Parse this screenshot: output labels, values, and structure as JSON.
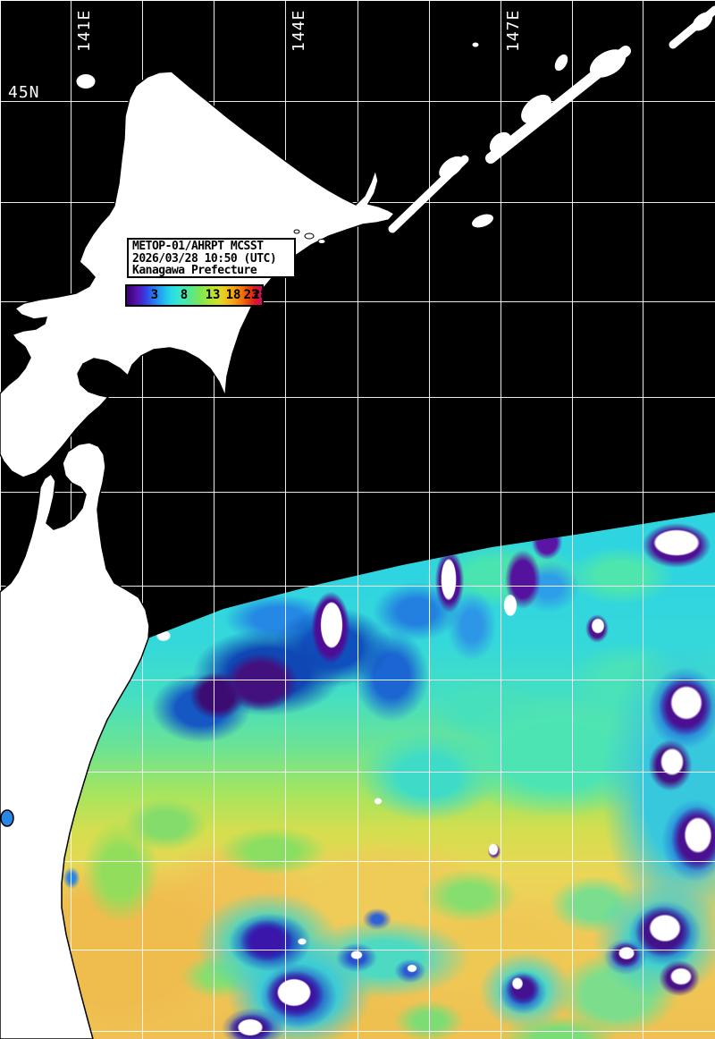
{
  "title_box": {
    "line1": "METOP-01/AHRPT MCSST",
    "line2": "2026/03/28 10:50 (UTC)",
    "line3": "Kanagawa Prefecture"
  },
  "colorbar": {
    "ticks": [
      "3",
      "8",
      "13",
      "18",
      "23",
      "28"
    ]
  },
  "coordinates": {
    "lat_labels": [
      {
        "text": "45N"
      }
    ],
    "lon_labels": [
      {
        "text": "141E"
      },
      {
        "text": "144E"
      },
      {
        "text": "147E"
      }
    ]
  },
  "colors": {
    "sea_no_data": "#000000",
    "land": "#ffffff",
    "grid_line": "#ffffff",
    "scale_cold_to_warm": [
      "#38006E",
      "#3838E0",
      "#2878F0",
      "#20B4F0",
      "#28DCE4",
      "#3CE8C4",
      "#55E88E",
      "#7CE658",
      "#AAE635",
      "#D6DE28",
      "#F0C01E",
      "#F49C14",
      "#E83A10",
      "#C40E66"
    ]
  }
}
